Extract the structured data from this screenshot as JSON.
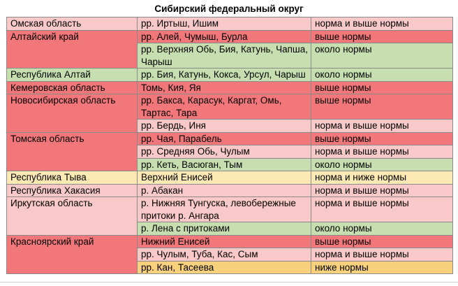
{
  "title": "Сибирский федеральный округ",
  "rows": [
    {
      "region": "Омская область",
      "rivers": "рр. Иртыш, Ишим",
      "status": "норма и выше нормы"
    },
    {
      "region": "Алтайский край",
      "rivers": "рр. Алей, Чумыш, Бурла",
      "status": "выше нормы"
    },
    {
      "rivers": "рр. Верхняя Обь, Бия, Катунь, Чапша, Чарыш",
      "status": "около нормы"
    },
    {
      "region": "Республика Алтай",
      "rivers": "рр. Бия, Катунь, Кокса, Урсул, Чарыш",
      "status": "около нормы"
    },
    {
      "region": "Кемеровская область",
      "rivers": "Томь, Кия, Яя",
      "status": "выше нормы"
    },
    {
      "region": "Новосибирская область",
      "rivers": "рр. Бакса, Карасук, Каргат, Омь, Тартас, Тара",
      "status": "выше нормы"
    },
    {
      "rivers": "рр. Бердь, Иня",
      "status": "норма и выше нормы"
    },
    {
      "region": "Томская область",
      "rivers": "рр. Чая, Парабель",
      "status": "выше нормы"
    },
    {
      "rivers": "рр. Средняя Обь, Чулым",
      "status": "норма и выше нормы"
    },
    {
      "rivers": "рр. Кеть, Васюган, Тым",
      "status": "около нормы"
    },
    {
      "region": "Республика Тыва",
      "rivers": "Верхний Енисей",
      "status": "норма и ниже нормы"
    },
    {
      "region": "Республика Хакасия",
      "rivers": "р. Абакан",
      "status": "норма и выше нормы"
    },
    {
      "region": "Иркутская область",
      "rivers": "р. Нижняя Тунгуска, левобережные притоки р. Ангара",
      "status": "норма и выше нормы"
    },
    {
      "rivers": "р. Лена с притоками",
      "status": "около нормы"
    },
    {
      "region": "Красноярский край",
      "rivers": "Нижний Енисей",
      "status": "выше нормы"
    },
    {
      "rivers": "рр. Чулым, Туба, Кас, Сым",
      "status": "норма и выше нормы"
    },
    {
      "rivers": "рр. Кан, Тасеева",
      "status": "ниже нормы"
    }
  ],
  "colors": {
    "above_norm": "#f2777a",
    "norm_and_above": "#f9c8c8",
    "near_norm": "#c7dfb0",
    "norm_and_below": "#fde9b4",
    "below_norm": "#f9d07c"
  }
}
